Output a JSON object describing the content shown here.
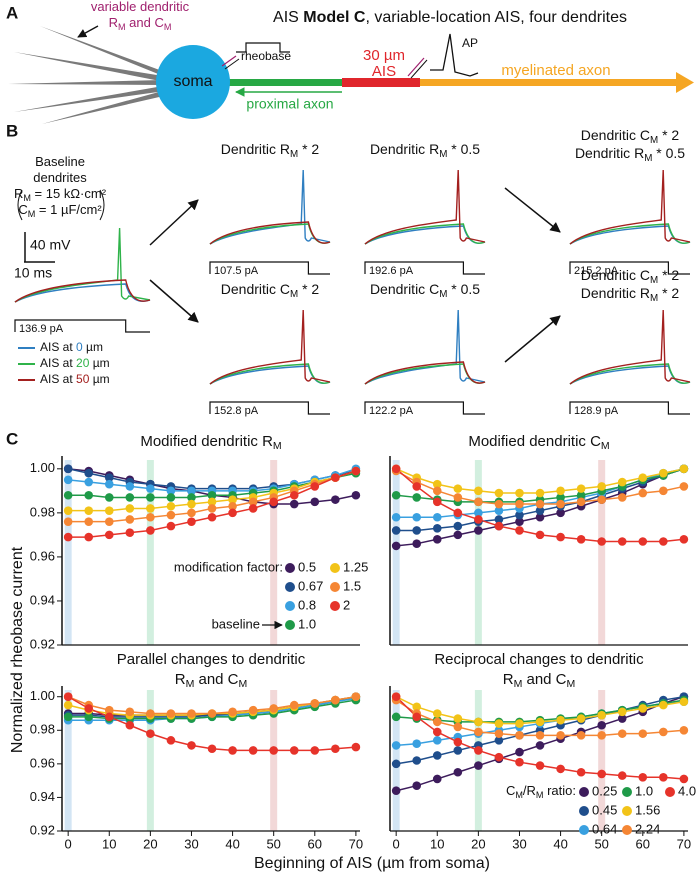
{
  "panel_labels": [
    "A",
    "B",
    "C"
  ],
  "panel_a": {
    "title": {
      "pre": "AIS ",
      "bold": "Model C",
      "post": ", variable-location AIS, four dendrites"
    },
    "dendrite_note": [
      [
        "variable dendritic"
      ],
      [
        "R",
        "M",
        " and C",
        "M"
      ]
    ],
    "soma": "soma",
    "rheobase": "rheobase",
    "ais_length": "30 µm",
    "ais": "AIS",
    "ap": "AP",
    "myelinated": "myelinated axon",
    "proximal": "proximal axon"
  },
  "panel_b": {
    "baseline": [
      [
        "Baseline"
      ],
      [
        "dendrites"
      ],
      [
        "R",
        "M",
        " = 15 kΩ·cm²"
      ],
      [
        "C",
        "M",
        " = 1 µF/cm²"
      ]
    ],
    "scale_v": "40 mV",
    "scale_t": "10 ms",
    "baseline_current": "136.9 pA",
    "baseline_spike": "#2fb34a",
    "legend": [
      {
        "pre": "AIS at ",
        "num": "0",
        "post": " µm",
        "color": "#2f7fc1"
      },
      {
        "pre": "AIS at ",
        "num": "20",
        "post": " µm",
        "color": "#2fb34a"
      },
      {
        "pre": "AIS at ",
        "num": "50",
        "post": " µm",
        "color": "#a3201f"
      }
    ],
    "conditions": [
      {
        "title": [
          [
            "Dendritic R",
            "M",
            " * 2"
          ]
        ],
        "current": "107.5 pA",
        "spike": "#2f7fc1"
      },
      {
        "title": [
          [
            "Dendritic R",
            "M",
            " * 0.5"
          ]
        ],
        "current": "192.6 pA",
        "spike": "#a3201f"
      },
      {
        "title": [
          [
            "Dendritic C",
            "M",
            " * 2"
          ],
          [
            "Dendritic R",
            "M",
            " * 0.5"
          ]
        ],
        "current": "215.2 pA",
        "spike": "#a3201f"
      },
      {
        "title": [
          [
            "Dendritic C",
            "M",
            " * 2"
          ]
        ],
        "current": "152.8 pA",
        "spike": "#a3201f"
      },
      {
        "title": [
          [
            "Dendritic C",
            "M",
            " * 0.5"
          ]
        ],
        "current": "122.2 pA",
        "spike": "#2f7fc1"
      },
      {
        "title": [
          [
            "Dendritic C",
            "M",
            " * 2"
          ],
          [
            "Dendritic R",
            "M",
            " * 2"
          ]
        ],
        "current": "128.9 pA",
        "spike": "#a3201f"
      }
    ]
  },
  "axis_labels": {
    "y": "Normalized rheobase current",
    "x": "Beginning of AIS (µm from soma)"
  },
  "ais_highlights": [
    {
      "x": 0,
      "color": "#d3e5f4"
    },
    {
      "x": 20,
      "color": "#d2efdf"
    },
    {
      "x": 50,
      "color": "#f2d8d8"
    }
  ],
  "chart_data": [
    {
      "type": "line",
      "title": [
        [
          "Modified dendritic R",
          "M"
        ]
      ],
      "x": [
        0,
        5,
        10,
        15,
        20,
        25,
        30,
        35,
        40,
        45,
        50,
        55,
        60,
        65,
        70
      ],
      "xlim": [
        -1.5,
        71
      ],
      "ylim": [
        0.92,
        1.004
      ],
      "yticks": [
        0.92,
        0.94,
        0.96,
        0.98,
        {
          "value": 1,
          "label": "1.00"
        }
      ],
      "legend_title": "modification factor:",
      "annotation": "baseline",
      "series": [
        {
          "name": "0.5",
          "color": "#3d1c5c",
          "values": [
            1.0,
            0.999,
            0.997,
            0.995,
            0.993,
            0.991,
            0.99,
            0.988,
            0.987,
            0.985,
            0.984,
            0.984,
            0.985,
            0.986,
            0.988
          ]
        },
        {
          "name": "0.67",
          "color": "#1f4e8c",
          "values": [
            1.0,
            0.998,
            0.996,
            0.994,
            0.993,
            0.992,
            0.991,
            0.991,
            0.991,
            0.991,
            0.992,
            0.993,
            0.995,
            0.997,
            0.999
          ]
        },
        {
          "name": "0.8",
          "color": "#39a0e0",
          "values": [
            0.995,
            0.994,
            0.993,
            0.992,
            0.991,
            0.99,
            0.99,
            0.99,
            0.99,
            0.99,
            0.991,
            0.993,
            0.995,
            0.997,
            1.0
          ]
        },
        {
          "name": "1.0",
          "color": "#1f9a48",
          "values": [
            0.988,
            0.988,
            0.987,
            0.987,
            0.987,
            0.987,
            0.987,
            0.988,
            0.988,
            0.989,
            0.99,
            0.992,
            0.994,
            0.996,
            0.998
          ]
        },
        {
          "name": "1.25",
          "color": "#f2c318",
          "values": [
            0.981,
            0.981,
            0.981,
            0.982,
            0.982,
            0.983,
            0.984,
            0.985,
            0.986,
            0.987,
            0.989,
            0.991,
            0.994,
            0.996,
            0.999
          ]
        },
        {
          "name": "1.5",
          "color": "#f58634",
          "values": [
            0.976,
            0.976,
            0.976,
            0.977,
            0.978,
            0.979,
            0.98,
            0.982,
            0.983,
            0.985,
            0.987,
            0.99,
            0.993,
            0.996,
            0.999
          ]
        },
        {
          "name": "2",
          "color": "#e6332a",
          "values": [
            0.969,
            0.969,
            0.97,
            0.971,
            0.972,
            0.974,
            0.976,
            0.978,
            0.98,
            0.982,
            0.985,
            0.988,
            0.992,
            0.996,
            0.999
          ]
        }
      ]
    },
    {
      "type": "line",
      "title": [
        [
          "Modified dendritic C",
          "M"
        ]
      ],
      "x": [
        0,
        5,
        10,
        15,
        20,
        25,
        30,
        35,
        40,
        45,
        50,
        55,
        60,
        65,
        70
      ],
      "xlim": [
        -1.5,
        71
      ],
      "ylim": [
        0.92,
        1.004
      ],
      "series": [
        {
          "color": "#3d1c5c",
          "values": [
            0.965,
            0.966,
            0.968,
            0.97,
            0.972,
            0.974,
            0.976,
            0.978,
            0.98,
            0.983,
            0.986,
            0.989,
            0.993,
            0.997,
            1.0
          ]
        },
        {
          "color": "#1f4e8c",
          "values": [
            0.972,
            0.972,
            0.973,
            0.974,
            0.976,
            0.977,
            0.979,
            0.981,
            0.983,
            0.985,
            0.988,
            0.991,
            0.994,
            0.997,
            1.0
          ]
        },
        {
          "color": "#39a0e0",
          "values": [
            0.978,
            0.978,
            0.978,
            0.979,
            0.98,
            0.981,
            0.982,
            0.984,
            0.985,
            0.987,
            0.989,
            0.992,
            0.995,
            0.998,
            1.0
          ]
        },
        {
          "color": "#1f9a48",
          "values": [
            0.988,
            0.987,
            0.986,
            0.985,
            0.985,
            0.985,
            0.985,
            0.986,
            0.987,
            0.988,
            0.99,
            0.992,
            0.995,
            0.997,
            1.0
          ]
        },
        {
          "color": "#f2c318",
          "values": [
            1.0,
            0.996,
            0.993,
            0.991,
            0.99,
            0.989,
            0.989,
            0.989,
            0.99,
            0.991,
            0.992,
            0.994,
            0.996,
            0.998,
            1.0
          ]
        },
        {
          "color": "#f58634",
          "values": [
            0.999,
            0.994,
            0.99,
            0.987,
            0.985,
            0.984,
            0.984,
            0.984,
            0.984,
            0.985,
            0.986,
            0.987,
            0.989,
            0.99,
            0.992
          ]
        },
        {
          "color": "#e6332a",
          "values": [
            1.0,
            0.992,
            0.985,
            0.98,
            0.977,
            0.974,
            0.972,
            0.97,
            0.969,
            0.968,
            0.967,
            0.967,
            0.967,
            0.967,
            0.968
          ]
        }
      ]
    },
    {
      "type": "line",
      "title": [
        [
          "Parallel changes to dendritic"
        ],
        [
          "R",
          "M",
          " and C",
          "M"
        ]
      ],
      "x": [
        0,
        5,
        10,
        15,
        20,
        25,
        30,
        35,
        40,
        45,
        50,
        55,
        60,
        65,
        70
      ],
      "xlim": [
        -1.5,
        71
      ],
      "ylim": [
        0.92,
        1.004
      ],
      "xticks": [
        0,
        10,
        20,
        30,
        40,
        50,
        60,
        70
      ],
      "yticks": [
        0.92,
        0.94,
        0.96,
        0.98,
        {
          "value": 1,
          "label": "1.00"
        }
      ],
      "series": [
        {
          "color": "#3d1c5c",
          "values": [
            0.99,
            0.99,
            0.989,
            0.989,
            0.989,
            0.989,
            0.989,
            0.989,
            0.99,
            0.991,
            0.992,
            0.994,
            0.996,
            0.998,
            1.0
          ]
        },
        {
          "color": "#1f4e8c",
          "values": [
            0.989,
            0.989,
            0.988,
            0.988,
            0.988,
            0.988,
            0.988,
            0.989,
            0.989,
            0.99,
            0.991,
            0.993,
            0.995,
            0.997,
            1.0
          ]
        },
        {
          "color": "#39a0e0",
          "values": [
            0.986,
            0.986,
            0.986,
            0.986,
            0.986,
            0.987,
            0.987,
            0.988,
            0.989,
            0.99,
            0.991,
            0.993,
            0.995,
            0.997,
            0.999
          ]
        },
        {
          "color": "#1f9a48",
          "values": [
            0.988,
            0.988,
            0.987,
            0.987,
            0.987,
            0.987,
            0.987,
            0.988,
            0.988,
            0.989,
            0.99,
            0.992,
            0.994,
            0.996,
            0.998
          ]
        },
        {
          "color": "#f2c318",
          "values": [
            0.995,
            0.992,
            0.99,
            0.989,
            0.989,
            0.989,
            0.989,
            0.99,
            0.99,
            0.991,
            0.992,
            0.994,
            0.996,
            0.998,
            1.0
          ]
        },
        {
          "color": "#f58634",
          "values": [
            1.0,
            0.995,
            0.992,
            0.991,
            0.99,
            0.99,
            0.99,
            0.99,
            0.991,
            0.992,
            0.993,
            0.995,
            0.996,
            0.998,
            1.0
          ]
        },
        {
          "color": "#e6332a",
          "values": [
            1.0,
            0.993,
            0.988,
            0.983,
            0.978,
            0.974,
            0.971,
            0.969,
            0.968,
            0.968,
            0.968,
            0.968,
            0.968,
            0.969,
            0.97
          ]
        }
      ]
    },
    {
      "type": "line",
      "title": [
        [
          "Reciprocal changes to dendritic"
        ],
        [
          "R",
          "M",
          " and C",
          "M"
        ]
      ],
      "x": [
        0,
        5,
        10,
        15,
        20,
        25,
        30,
        35,
        40,
        45,
        50,
        55,
        60,
        65,
        70
      ],
      "xlim": [
        -1.5,
        71
      ],
      "ylim": [
        0.92,
        1.004
      ],
      "xticks": [
        0,
        10,
        20,
        30,
        40,
        50,
        60,
        70
      ],
      "legend_title": [
        "C",
        "M",
        "/R",
        "M",
        " ratio:"
      ],
      "series": [
        {
          "name": "0.25",
          "color": "#3d1c5c",
          "values": [
            0.944,
            0.947,
            0.951,
            0.955,
            0.959,
            0.963,
            0.967,
            0.971,
            0.975,
            0.979,
            0.983,
            0.987,
            0.991,
            0.996,
            1.0
          ]
        },
        {
          "name": "0.45",
          "color": "#1f4e8c",
          "values": [
            0.96,
            0.962,
            0.965,
            0.968,
            0.971,
            0.974,
            0.977,
            0.98,
            0.983,
            0.986,
            0.989,
            0.992,
            0.995,
            0.998,
            1.0
          ]
        },
        {
          "name": "0.64",
          "color": "#39a0e0",
          "values": [
            0.971,
            0.972,
            0.974,
            0.976,
            0.978,
            0.98,
            0.982,
            0.984,
            0.986,
            0.988,
            0.99,
            0.992,
            0.994,
            0.996,
            0.997
          ]
        },
        {
          "name": "1.0",
          "color": "#1f9a48",
          "values": [
            0.988,
            0.987,
            0.986,
            0.985,
            0.985,
            0.985,
            0.985,
            0.986,
            0.987,
            0.988,
            0.99,
            0.992,
            0.994,
            0.996,
            0.998
          ]
        },
        {
          "name": "1.56",
          "color": "#f2c318",
          "values": [
            1.0,
            0.994,
            0.99,
            0.987,
            0.985,
            0.984,
            0.984,
            0.985,
            0.986,
            0.987,
            0.989,
            0.991,
            0.993,
            0.995,
            0.997
          ]
        },
        {
          "name": "2.24",
          "color": "#f58634",
          "values": [
            0.998,
            0.99,
            0.985,
            0.982,
            0.979,
            0.978,
            0.977,
            0.977,
            0.977,
            0.977,
            0.977,
            0.978,
            0.978,
            0.979,
            0.98
          ]
        },
        {
          "name": "4.0",
          "color": "#e6332a",
          "values": [
            1.0,
            0.988,
            0.979,
            0.973,
            0.968,
            0.964,
            0.961,
            0.959,
            0.957,
            0.955,
            0.954,
            0.953,
            0.952,
            0.952,
            0.951
          ]
        }
      ]
    }
  ]
}
